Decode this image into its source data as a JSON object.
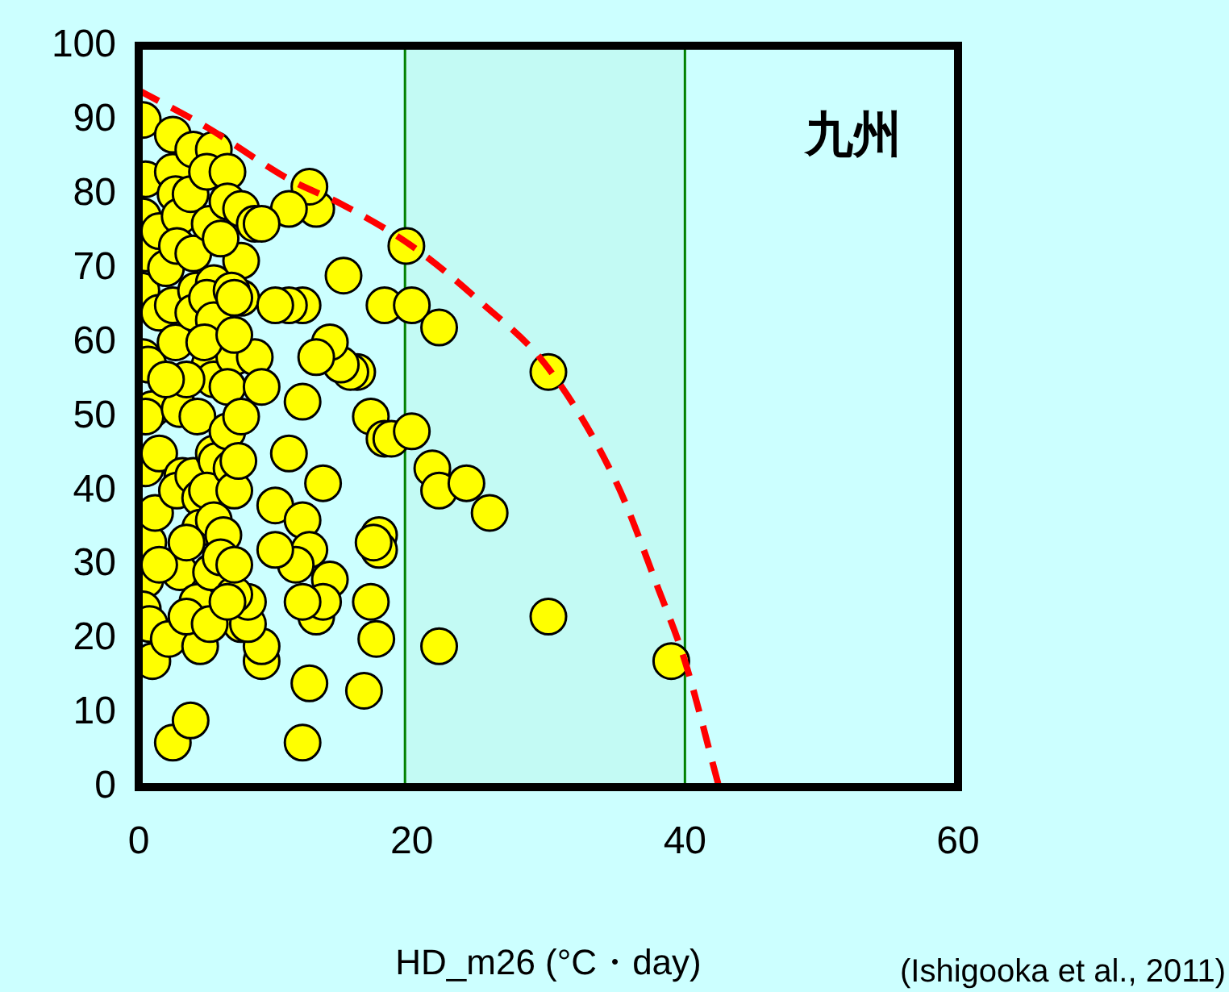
{
  "chart_data": {
    "type": "scatter",
    "xlabel": "HD_m26 (°C・day)",
    "xlim": [
      0,
      60
    ],
    "xticks": [
      0,
      20,
      40,
      60
    ],
    "ylim": [
      0,
      100
    ],
    "yticks": [
      0,
      10,
      20,
      30,
      40,
      50,
      60,
      70,
      80,
      90,
      100
    ],
    "grid": false,
    "legend": false,
    "marker": "circle",
    "annotations": [
      "九州",
      "(Ishigooka et al., 2011)"
    ],
    "bands": [
      {
        "axis": "x",
        "from": 19.5,
        "to": 40,
        "color": "#008000"
      }
    ],
    "series": [
      {
        "color": "#ffff00",
        "x": [
          0.3,
          0.5,
          0.3,
          0.5,
          0.2,
          0.3,
          0.7,
          1,
          0.5,
          0.5,
          0.7,
          0.5,
          0.3,
          0.8,
          1,
          1.5,
          1.2,
          1.5,
          2,
          1.5,
          2.5,
          2.5,
          2.7,
          3,
          2.8,
          2.5,
          2.7,
          3,
          3.2,
          2.8,
          3,
          2.2,
          2.5,
          3.8,
          4,
          3.8,
          4,
          4.2,
          4,
          4.3,
          4,
          4.5,
          4.5,
          4.3,
          4.5,
          5.5,
          5,
          5.2,
          5.5,
          5,
          5.5,
          5.2,
          5.5,
          5.5,
          5.7,
          5,
          5.5,
          5.3,
          6.5,
          6.5,
          7,
          6.5,
          6.5,
          6.8,
          7,
          6.2,
          7.5,
          7.5,
          7.5,
          7.5,
          7.3,
          7.5,
          6,
          3.5,
          4.8,
          2,
          1.5,
          3.5,
          3.5,
          5.2,
          8.5,
          6.8,
          19.6,
          18,
          20,
          22,
          30,
          17,
          18,
          18.5,
          20,
          21.5,
          22,
          24,
          25.7,
          17.6,
          17.4,
          17.6,
          17.2,
          17,
          16.5,
          22,
          30,
          39,
          16,
          15.5,
          14.8,
          14,
          15,
          13,
          12.5,
          11,
          12,
          11,
          13,
          12,
          11,
          10,
          12,
          12.5,
          11.5,
          10,
          13.5,
          14,
          13,
          13.5,
          12,
          12.5,
          12,
          9,
          9,
          8,
          8,
          7,
          6.5,
          7,
          8.5,
          9,
          9,
          10,
          7,
          6,
          7
        ],
        "values": [
          90,
          82,
          77,
          72,
          67,
          58,
          57,
          51,
          50,
          43,
          33,
          28,
          24,
          22,
          17,
          45,
          37,
          75,
          70,
          64,
          88,
          83,
          80,
          77,
          73,
          65,
          60,
          51,
          42,
          40,
          29,
          20,
          6,
          9,
          86,
          80,
          72,
          67,
          64,
          50,
          42,
          39,
          35,
          25,
          19,
          86,
          83,
          76,
          68,
          66,
          63,
          57,
          55,
          45,
          44,
          40,
          36,
          29,
          83,
          79,
          58,
          54,
          48,
          43,
          40,
          34,
          78,
          71,
          66,
          50,
          44,
          22,
          31,
          55,
          60,
          55,
          30,
          33,
          23,
          22,
          76,
          67,
          73,
          65,
          65,
          62,
          56,
          50,
          47,
          47,
          48,
          43,
          40,
          41,
          37,
          34,
          20,
          32,
          33,
          25,
          13,
          19,
          23,
          17,
          56,
          56,
          57,
          60,
          69,
          78,
          81,
          78,
          65,
          65,
          58,
          52,
          45,
          38,
          36,
          32,
          30,
          32,
          41,
          28,
          23,
          25,
          25,
          14,
          6,
          17,
          19,
          22,
          25,
          26,
          25,
          30,
          58,
          54,
          76,
          65,
          66,
          74,
          61
        ]
      },
      {
        "type": "line",
        "color": "#ff0000",
        "line_style": "dashed",
        "marker": "none",
        "x": [
          0,
          5,
          11,
          15,
          20,
          25,
          30,
          35,
          38,
          40,
          42.5
        ],
        "values": [
          94,
          89,
          82,
          78.5,
          73,
          65.5,
          56.5,
          41,
          27,
          17,
          0
        ]
      }
    ]
  }
}
